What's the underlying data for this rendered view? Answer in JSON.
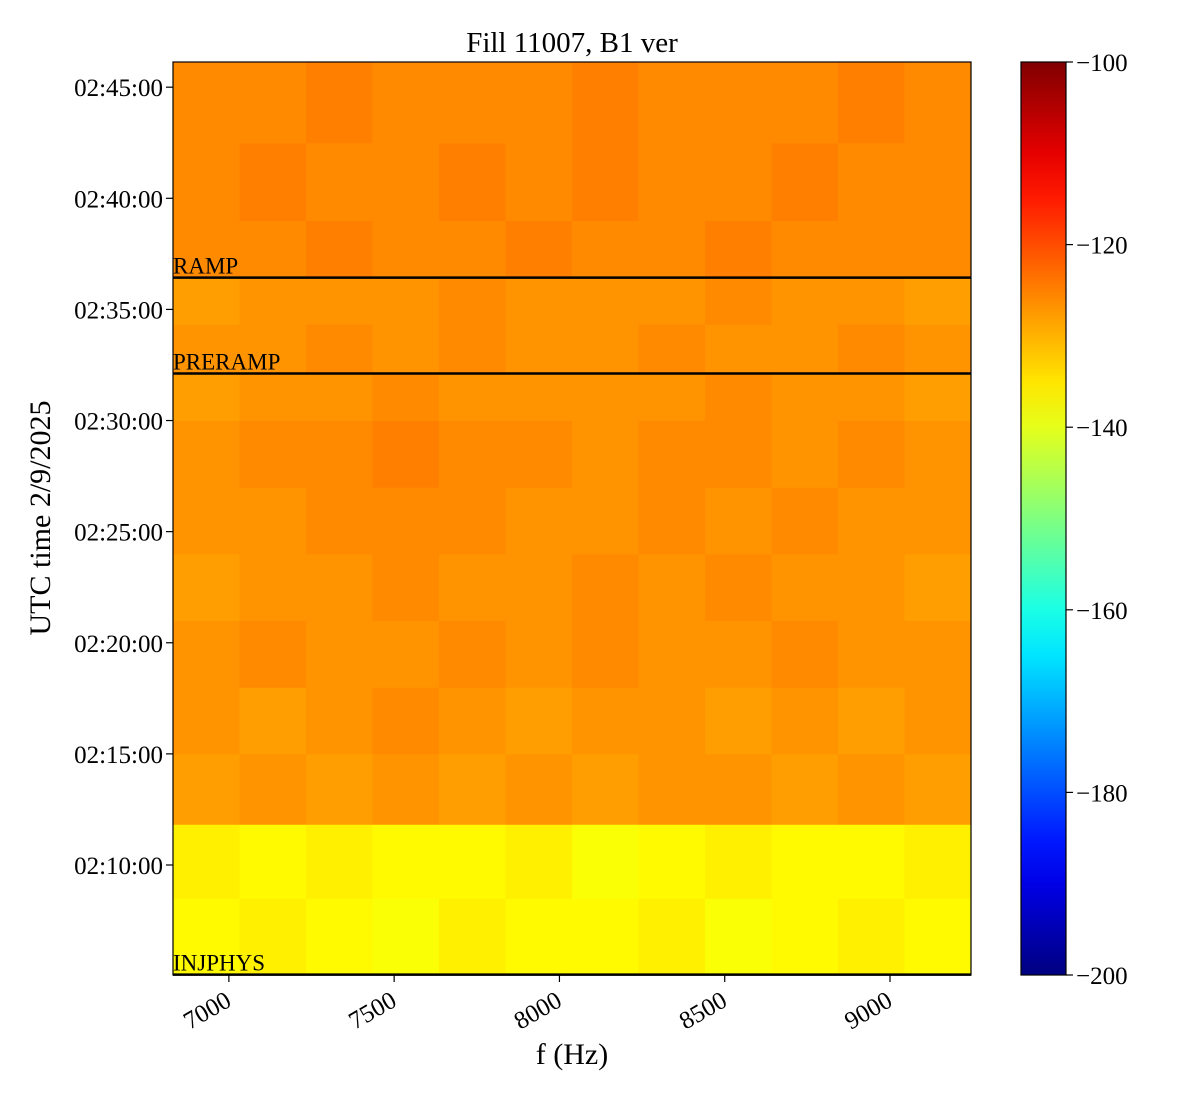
{
  "chart_data": {
    "type": "spectrogram",
    "title": "Fill 11007, B1 ver",
    "x_label": "f (Hz)",
    "y_label": "UTC time 2/9/2025",
    "xlim": [
      6831,
      9245
    ],
    "xticks": [
      7000,
      7500,
      8000,
      8500,
      9000
    ],
    "ylim": [
      "02:05:03",
      "02:46:08"
    ],
    "yticks": [
      "02:10:00",
      "02:15:00",
      "02:20:00",
      "02:25:00",
      "02:30:00",
      "02:35:00",
      "02:40:00",
      "02:45:00"
    ],
    "time_edges": [
      "02:05:03",
      "02:08:30",
      "02:11:50",
      "02:15:00",
      "02:18:00",
      "02:21:00",
      "02:24:00",
      "02:27:00",
      "02:30:00",
      "02:32:07",
      "02:34:20",
      "02:36:26",
      "02:39:00",
      "02:42:30",
      "02:46:08"
    ],
    "z": [
      [
        -137,
        -136,
        -137,
        -138,
        -136,
        -137,
        -137,
        -136,
        -138,
        -137,
        -136,
        -137
      ],
      [
        -136,
        -137,
        -136,
        -137,
        -137,
        -136,
        -138,
        -137,
        -136,
        -137,
        -137,
        -136
      ],
      [
        -128,
        -127,
        -128,
        -127,
        -128,
        -127,
        -128,
        -127,
        -127,
        -128,
        -127,
        -128
      ],
      [
        -127,
        -128,
        -127,
        -126,
        -127,
        -128,
        -127,
        -127,
        -128,
        -127,
        -128,
        -127
      ],
      [
        -127,
        -126,
        -127,
        -127,
        -126,
        -127,
        -126,
        -127,
        -127,
        -126,
        -127,
        -127
      ],
      [
        -128,
        -127,
        -127,
        -126,
        -127,
        -127,
        -126,
        -127,
        -126,
        -127,
        -127,
        -128
      ],
      [
        -127,
        -127,
        -126,
        -126,
        -126,
        -127,
        -127,
        -126,
        -127,
        -126,
        -127,
        -127
      ],
      [
        -127,
        -126,
        -126,
        -125,
        -126,
        -126,
        -127,
        -126,
        -126,
        -127,
        -126,
        -127
      ],
      [
        -128,
        -127,
        -127,
        -126,
        -127,
        -127,
        -127,
        -127,
        -126,
        -127,
        -127,
        -128
      ],
      [
        -127,
        -127,
        -126,
        -127,
        -126,
        -127,
        -127,
        -126,
        -127,
        -127,
        -126,
        -127
      ],
      [
        -128,
        -127,
        -127,
        -127,
        -126,
        -127,
        -127,
        -127,
        -126,
        -127,
        -127,
        -128
      ],
      [
        -126,
        -126,
        -125,
        -126,
        -126,
        -125,
        -126,
        -126,
        -125,
        -126,
        -126,
        -126
      ],
      [
        -126,
        -125,
        -126,
        -126,
        -125,
        -126,
        -125,
        -126,
        -126,
        -125,
        -126,
        -126
      ],
      [
        -126,
        -126,
        -125,
        -126,
        -126,
        -126,
        -125,
        -126,
        -126,
        -126,
        -125,
        -126
      ]
    ],
    "colormap": "jet",
    "clim": [
      -200,
      -100
    ],
    "cticks": [
      -200,
      -180,
      -160,
      -140,
      -120,
      -100
    ],
    "markers": [
      {
        "label": "INJPHYS",
        "time": "02:05:04",
        "color": "#000000"
      },
      {
        "label": "PRERAMP",
        "time": "02:32:07",
        "color": "#000000"
      },
      {
        "label": "RAMP",
        "time": "02:36:26",
        "color": "#000000"
      }
    ]
  }
}
